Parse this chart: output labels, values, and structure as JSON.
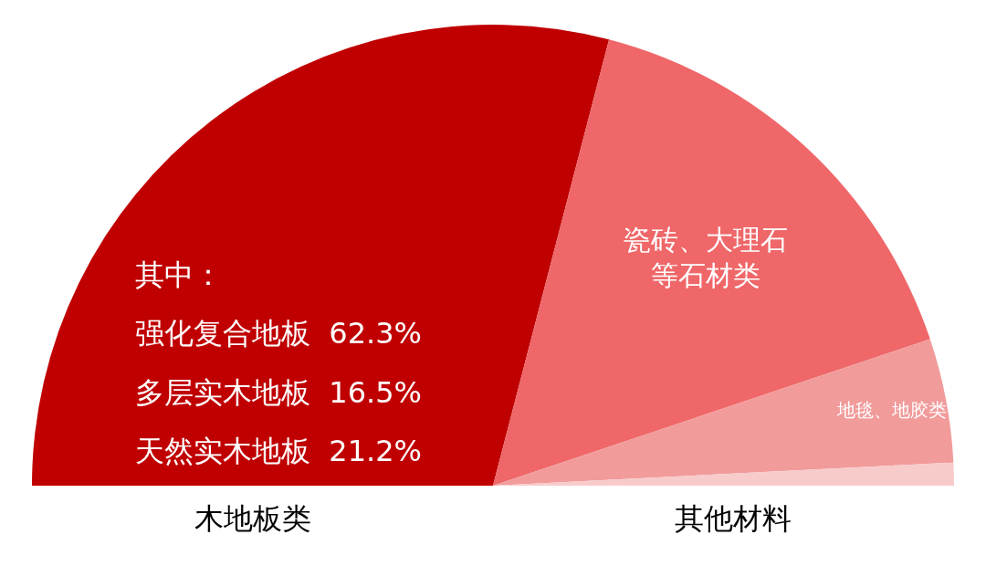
{
  "chart_data": {
    "type": "pie",
    "categories": [
      null,
      "瓷砖、大理石等石材类",
      "地毯、地胶类",
      null
    ],
    "values": [
      58.1,
      31.6,
      8.7,
      1.6
    ],
    "colors": [
      "#c00000",
      "#ef6769",
      "#f29b9b",
      "#f8cbcb"
    ],
    "annotations": [
      "其中：",
      "强化复合地板  62.3%",
      "多层实木地板  16.5%",
      "天然实木地板  21.2%",
      "木地板类",
      "其他材料"
    ]
  }
}
